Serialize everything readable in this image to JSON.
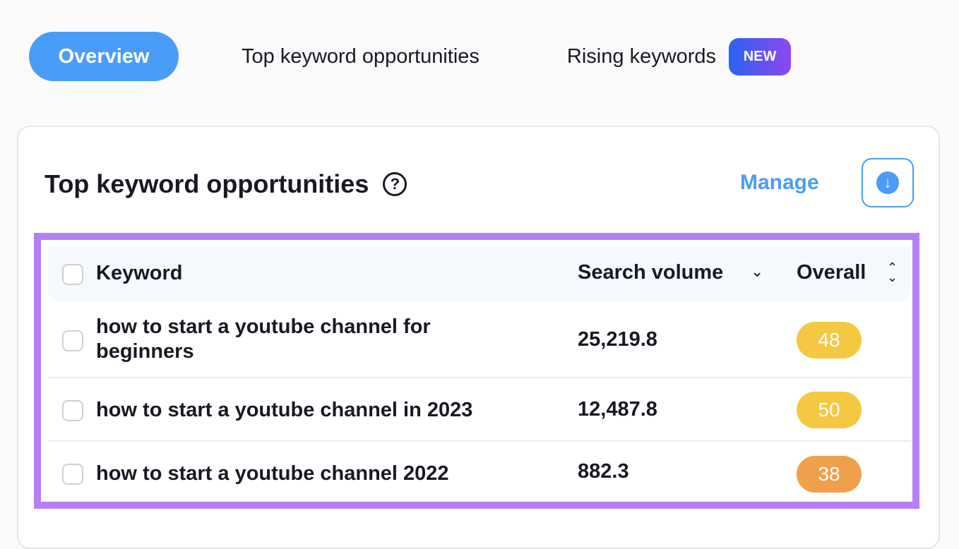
{
  "tabs": [
    {
      "label": "Overview",
      "active": true
    },
    {
      "label": "Top keyword opportunities"
    },
    {
      "label": "Rising keywords",
      "badge": "NEW"
    }
  ],
  "card": {
    "title": "Top keyword opportunities",
    "help_icon": "?",
    "manage_label": "Manage",
    "download_icon": "↓"
  },
  "table": {
    "columns": {
      "keyword": "Keyword",
      "search_volume": "Search volume",
      "overall": "Overall"
    },
    "sort_desc_icon": "⌄",
    "sort_both_icon": "⌃⌄",
    "rows": [
      {
        "keyword": "how to start a youtube channel for beginners",
        "search_volume": "25,219.8",
        "overall": "48",
        "color": "#f5c842"
      },
      {
        "keyword": "how to start a youtube channel in 2023",
        "search_volume": "12,487.8",
        "overall": "50",
        "color": "#f5c842"
      },
      {
        "keyword": "how to start a youtube channel 2022",
        "search_volume": "882.3",
        "overall": "38",
        "color": "#f0a04b"
      }
    ]
  },
  "colors": {
    "accent": "#4a9cf6",
    "highlight": "#b77ff5"
  }
}
